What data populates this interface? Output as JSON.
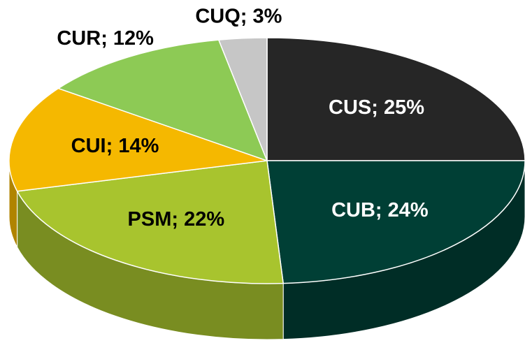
{
  "chart_data": {
    "type": "pie",
    "values": [
      25,
      24,
      22,
      14,
      12,
      3
    ],
    "value_labels": [
      "CUS; 25%",
      "CUB; 24%",
      "PSM; 22%",
      "CUI; 14%",
      "CUR; 12%",
      "CUQ; 3%"
    ],
    "colors": [
      "#262626",
      "#003f35",
      "#a8c42e",
      "#f5b800",
      "#8dca55",
      "#c6c6c6"
    ]
  }
}
